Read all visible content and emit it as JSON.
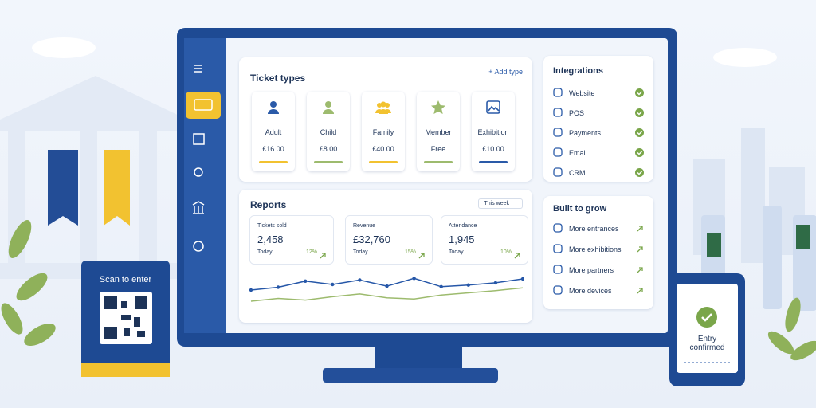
{
  "ticket_card": {
    "label": "Scan to enter"
  },
  "ticket_types": {
    "title": "Ticket types",
    "action": "+ Add type",
    "items": [
      {
        "name": "Adult",
        "price": "£16.00"
      },
      {
        "name": "Child",
        "price": "£8.00"
      },
      {
        "name": "Family",
        "price": "£40.00"
      },
      {
        "name": "Member",
        "price": "Free"
      },
      {
        "name": "Exhibition",
        "price": "£10.00"
      }
    ]
  },
  "reports": {
    "title": "Reports",
    "period": "This week",
    "stats": [
      {
        "label": "Tickets sold",
        "value": "2,458",
        "period": "Today",
        "change": "12%"
      },
      {
        "label": "Revenue",
        "value": "£32,760",
        "period": "Today",
        "change": "15%"
      },
      {
        "label": "Attendance",
        "value": "1,945",
        "period": "Today",
        "change": "10%"
      }
    ],
    "trend": [
      {
        "color": "#2657a8",
        "values": [
          40,
          45,
          56,
          50,
          58,
          47,
          61,
          46,
          49,
          53,
          60
        ]
      },
      {
        "color": "#9dbb6e",
        "values": [
          20,
          25,
          22,
          28,
          33,
          26,
          24,
          31,
          35,
          39,
          44
        ]
      }
    ]
  },
  "integrations": {
    "title": "Integrations",
    "items": [
      "Website",
      "POS",
      "Payments",
      "Email",
      "CRM"
    ]
  },
  "growth": {
    "title": "Built to grow",
    "items": [
      "More entrances",
      "More exhibitions",
      "More partners",
      "More devices"
    ]
  },
  "phone": {
    "message": "Entry confirmed"
  }
}
